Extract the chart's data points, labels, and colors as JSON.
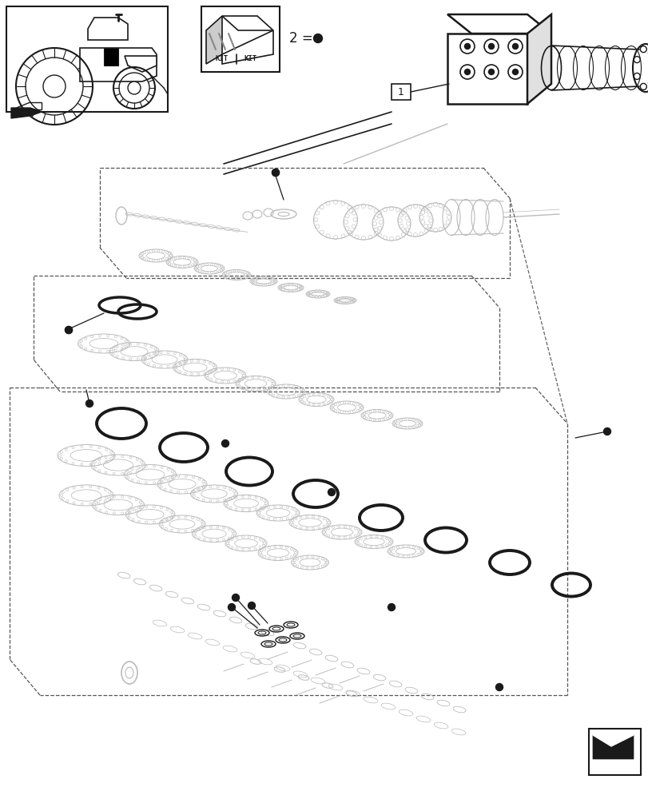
{
  "bg_color": "#ffffff",
  "line_color": "#1a1a1a",
  "gray_color": "#bbbbbb",
  "mid_gray": "#888888",
  "page_width": 8.12,
  "page_height": 10.0,
  "dpi": 100
}
